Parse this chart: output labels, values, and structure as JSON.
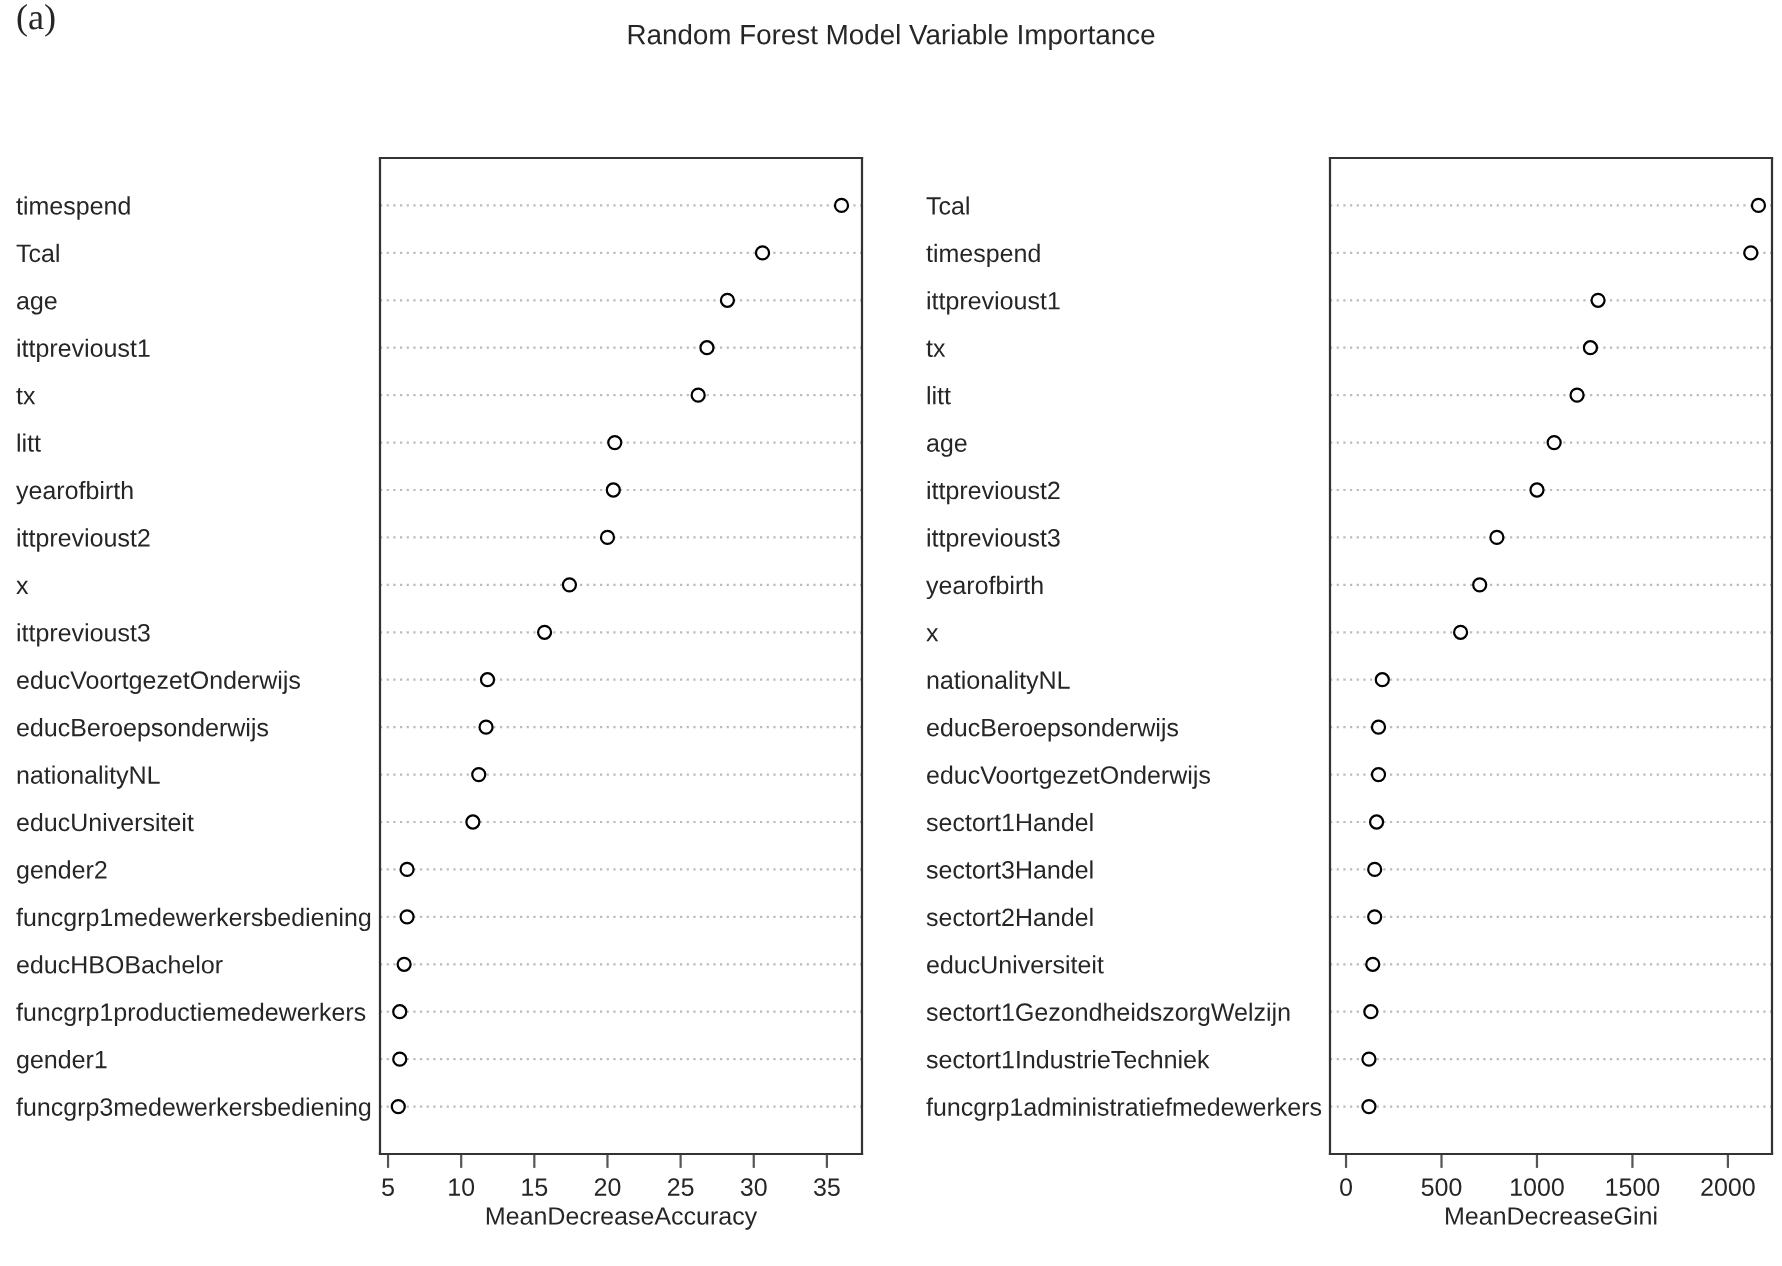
{
  "chart_data": [
    {
      "type": "scatter",
      "orientation": "horizontal",
      "title": "Random Forest Model Variable Importance",
      "annotations": [
        "(a)"
      ],
      "xlabel": "MeanDecreaseAccuracy",
      "categories": [
        "timespend",
        "Tcal",
        "age",
        "ittprevioust1",
        "tx",
        "litt",
        "yearofbirth",
        "ittprevioust2",
        "x",
        "ittprevioust3",
        "educVoortgezetOnderwijs",
        "educBeroepsonderwijs",
        "nationalityNL",
        "educUniversiteit",
        "gender2",
        "funcgrp1medewerkersbediening",
        "educHBOBachelor",
        "funcgrp1productiemedewerkers",
        "gender1",
        "funcgrp3medewerkersbediening"
      ],
      "series": [
        {
          "color": "#000000",
          "values": [
            36.0,
            30.6,
            28.2,
            26.8,
            26.2,
            20.5,
            20.4,
            20.0,
            17.4,
            15.7,
            11.8,
            11.7,
            11.2,
            10.8,
            6.3,
            6.3,
            6.1,
            5.8,
            5.8,
            5.7
          ]
        }
      ],
      "xlim": [
        4.45,
        37.4
      ],
      "xticks": [
        5,
        10,
        15,
        20,
        25,
        30,
        35
      ],
      "grid": "y",
      "marker": "circle"
    },
    {
      "type": "scatter",
      "orientation": "horizontal",
      "xlabel": "MeanDecreaseGini",
      "categories": [
        "Tcal",
        "timespend",
        "ittprevioust1",
        "tx",
        "litt",
        "age",
        "ittprevioust2",
        "ittprevioust3",
        "yearofbirth",
        "x",
        "nationalityNL",
        "educBeroepsonderwijs",
        "educVoortgezetOnderwijs",
        "sectort1Handel",
        "sectort3Handel",
        "sectort2Handel",
        "educUniversiteit",
        "sectort1GezondheidszorgWelzijn",
        "sectort1IndustrieTechniek",
        "funcgrp1administratiefmedewerkers"
      ],
      "series": [
        {
          "color": "#000000",
          "values": [
            2160,
            2120,
            1320,
            1280,
            1210,
            1090,
            1000,
            790,
            700,
            600,
            190,
            170,
            170,
            160,
            150,
            150,
            140,
            130,
            120,
            120
          ]
        }
      ],
      "xlim": [
        -84,
        2231
      ],
      "xticks": [
        0,
        500,
        1000,
        1500,
        2000
      ],
      "grid": "y",
      "marker": "circle"
    }
  ]
}
